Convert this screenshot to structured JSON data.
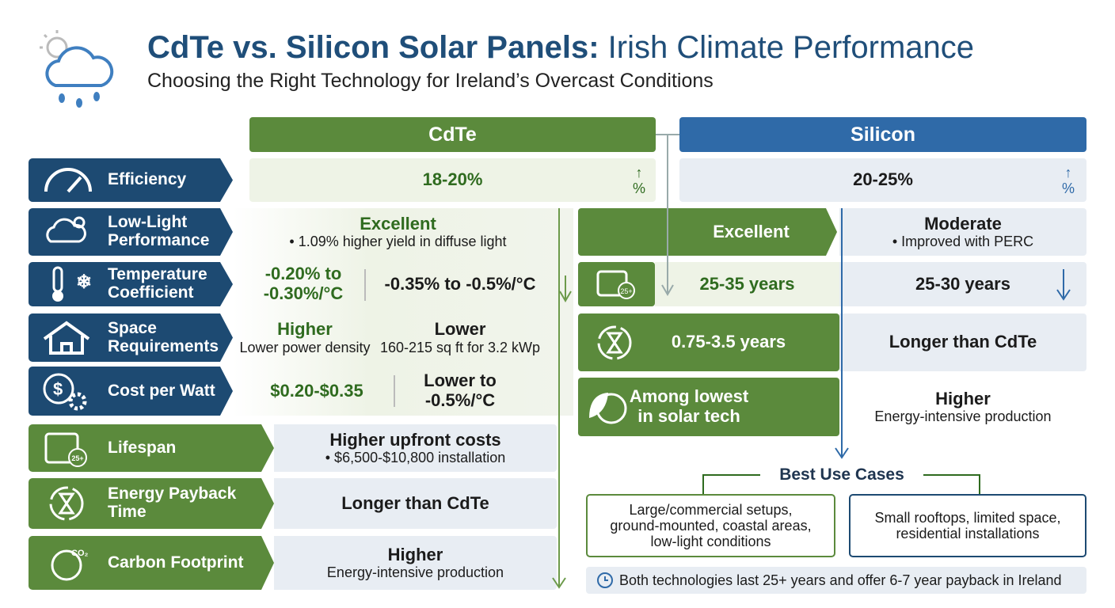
{
  "header": {
    "title_strong": "CdTe vs. Silicon Solar Panels:",
    "title_rest": "Irish Climate Performance",
    "subtitle": "Choosing the Right Technology for Ireland’s Overcast Conditions"
  },
  "columns": {
    "cdte": "CdTe",
    "silicon": "Silicon"
  },
  "icon_text": {
    "percent": "%",
    "calendar": "25+",
    "co2": "CO₂"
  },
  "labels": [
    [
      "Efficiency"
    ],
    [
      "Low-Light",
      "Performance"
    ],
    [
      "Temperature",
      "Coefficient"
    ],
    [
      "Space",
      "Requirements"
    ],
    [
      "Cost per Watt"
    ],
    [
      "Lifespan"
    ],
    [
      "Energy Payback",
      "Time"
    ],
    [
      "Carbon Footprint"
    ]
  ],
  "efficiency": {
    "cdte": "18-20%",
    "silicon": "20-25%"
  },
  "left_panel": {
    "low_light": {
      "title": "Excellent",
      "note": "• 1.09% higher yield in diffuse light"
    },
    "temperature": {
      "cdte": [
        "-0.20% to",
        "-0.30%/°C"
      ],
      "silicon": "-0.35% to -0.5%/°C"
    },
    "space": {
      "cdte": {
        "title": "Higher",
        "note": "Lower power density"
      },
      "silicon": {
        "title": "Lower",
        "note": "160-215 sq ft for 3.2 kWp"
      }
    },
    "cost": {
      "cdte": "$0.20-$0.35",
      "silicon": [
        "Lower to",
        "-0.5%/°C"
      ]
    },
    "lifespan": {
      "title": "Higher upfront costs",
      "note": "• $6,500-$10,800 installation"
    },
    "payback": {
      "title": "Longer than CdTe"
    },
    "carbon": {
      "title": "Higher",
      "note": "Energy-intensive production"
    }
  },
  "right_panel": [
    {
      "cdte": [
        "Excellent"
      ],
      "silicon": {
        "title": "Moderate",
        "note": "• Improved with PERC"
      }
    },
    {
      "cdte": [
        "25-35 years"
      ],
      "silicon": {
        "title": "25-30 years"
      }
    },
    {
      "cdte": [
        "0.75-3.5 years"
      ],
      "silicon": {
        "title": "Longer than CdTe"
      }
    },
    {
      "cdte": [
        "Among lowest",
        "in solar tech"
      ],
      "silicon": {
        "title": "Higher",
        "note": "Energy-intensive production"
      }
    }
  ],
  "best_use": {
    "title": "Best Use Cases",
    "cdte": [
      "Large/commercial setups,",
      "ground-mounted, coastal areas,",
      "low-light conditions"
    ],
    "silicon": [
      "Small rooftops, limited space,",
      "residential installations"
    ]
  },
  "footer": "Both technologies last 25+ years and offer 6-7 year payback in Ireland"
}
